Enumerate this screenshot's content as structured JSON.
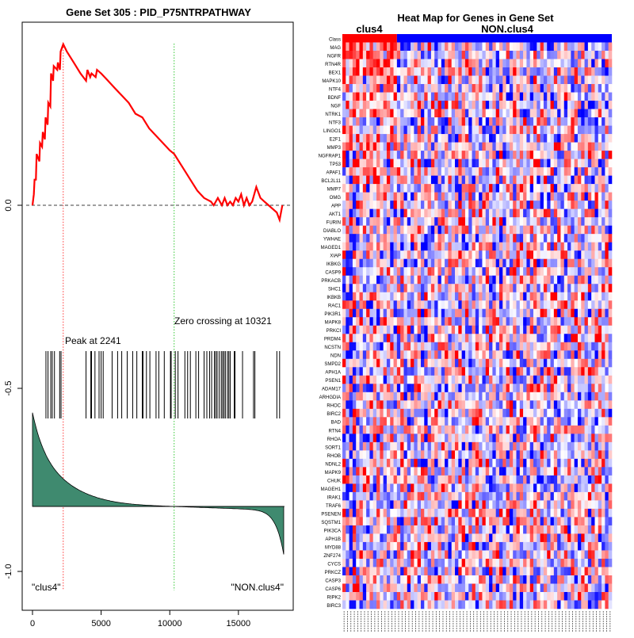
{
  "left_panel": {
    "title": "Gene Set  305 : PID_P75NTRPATHWAY",
    "peak_label": "Peak at 2241",
    "zero_label": "Zero crossing at 10321",
    "class_left_label": "\"clus4\"",
    "class_right_label": "\"NON.clus4\""
  },
  "right_panel": {
    "title": "Heat Map for Genes in Gene Set",
    "group1_label": "clus4",
    "group2_label": "NON.clus4",
    "class_row_label": "Class",
    "colors": {
      "group1": "#ff0000",
      "group2": "#0000ff",
      "high": "#ff0000",
      "low": "#0000ff"
    },
    "genes": [
      "MAG",
      "NGFR",
      "RTN4R",
      "BEX1",
      "MAPK10",
      "NTF4",
      "BDNF",
      "NGF",
      "NTRK1",
      "NTF3",
      "LINGO1",
      "E2F1",
      "MMP3",
      "NGFRAP1",
      "TP53",
      "APAF1",
      "BCL2L11",
      "MMP7",
      "OMG",
      "APP",
      "AKT1",
      "FURIN",
      "DIABLO",
      "YWHAE",
      "MAGED1",
      "XIAP",
      "IKBKG",
      "CASP9",
      "PRKACB",
      "SHC1",
      "IKBKB",
      "RAC1",
      "PIK3R1",
      "MAPK8",
      "PRKCI",
      "PRDM4",
      "NCSTN",
      "NDN",
      "SMPD2",
      "APH1A",
      "PSEN1",
      "ADAM17",
      "ARHGDIA",
      "RHOC",
      "BIRC2",
      "BAD",
      "RTN4",
      "RHOA",
      "SORT1",
      "RHOB",
      "NDNL2",
      "MAPK9",
      "CHUK",
      "MAGEH1",
      "IRAK1",
      "TRAF6",
      "PSENEN",
      "SQSTM1",
      "PIK3CA",
      "APH1B",
      "MYD88",
      "ZNF274",
      "CYCS",
      "PRKCZ",
      "CASP3",
      "CASP6",
      "RIPK2",
      "BIRC3"
    ]
  },
  "chart_data": [
    {
      "type": "line",
      "title": "Gene Set  305 : PID_P75NTRPATHWAY",
      "xlim": [
        0,
        18400
      ],
      "ylim": [
        -1.05,
        0.52
      ],
      "x_ticks": [
        0,
        5000,
        10000,
        15000
      ],
      "y_ticks": [
        0.0,
        -0.5,
        -1.0
      ],
      "enrichment_score": {
        "x": [
          0,
          100,
          150,
          250,
          300,
          500,
          550,
          700,
          750,
          900,
          950,
          1100,
          1150,
          1300,
          1350,
          1500,
          1550,
          1800,
          1850,
          2000,
          2050,
          2241,
          2500,
          3000,
          3500,
          3900,
          4000,
          4200,
          4300,
          4600,
          4700,
          5000,
          5500,
          6000,
          6500,
          7000,
          7500,
          8000,
          8500,
          9000,
          9500,
          10000,
          10321,
          11000,
          11500,
          12000,
          12500,
          13000,
          13200,
          13500,
          13800,
          14000,
          14200,
          14400,
          14600,
          14800,
          15000,
          15200,
          15400,
          15600,
          15800,
          16000,
          16300,
          16600,
          16900,
          17200,
          17500,
          17800,
          18000,
          18200
        ],
        "y": [
          0.0,
          0.03,
          0.07,
          0.07,
          0.14,
          0.12,
          0.17,
          0.16,
          0.2,
          0.18,
          0.24,
          0.22,
          0.28,
          0.27,
          0.36,
          0.34,
          0.38,
          0.37,
          0.39,
          0.37,
          0.42,
          0.44,
          0.42,
          0.39,
          0.36,
          0.34,
          0.37,
          0.35,
          0.36,
          0.35,
          0.37,
          0.36,
          0.34,
          0.32,
          0.3,
          0.28,
          0.25,
          0.24,
          0.21,
          0.19,
          0.17,
          0.15,
          0.14,
          0.1,
          0.07,
          0.04,
          0.02,
          0.01,
          0.0,
          0.02,
          0.0,
          0.02,
          0.0,
          0.01,
          0.0,
          0.02,
          0.01,
          0.03,
          0.0,
          0.02,
          0.0,
          0.01,
          0.05,
          0.02,
          0.01,
          0.0,
          -0.01,
          -0.02,
          -0.04,
          0.0
        ]
      },
      "peak_x": 2241,
      "zero_crossing_x": 10321,
      "hit_positions": [
        980,
        1130,
        1330,
        1440,
        1600,
        1980,
        2080,
        3900,
        4250,
        4300,
        4550,
        4850,
        5000,
        5150,
        5800,
        6200,
        6500,
        6900,
        7300,
        7600,
        8000,
        8050,
        8300,
        8550,
        9000,
        9200,
        9600,
        10050,
        10100,
        10400,
        10600,
        11100,
        11300,
        11500,
        11900,
        12100,
        12500,
        12700,
        12900,
        13050,
        13250,
        13350,
        13450,
        13600,
        13750,
        13850,
        13950,
        14050,
        14200,
        14300,
        14400,
        14700,
        14750,
        15300,
        16100,
        16200,
        17800,
        18000
      ],
      "metric_range": [
        0.38,
        -0.24
      ]
    },
    {
      "type": "heatmap",
      "title": "Heat Map for Genes in Gene Set",
      "groups": [
        {
          "name": "clus4",
          "n_samples": 16
        },
        {
          "name": "NON.clus4",
          "n_samples": 63
        }
      ],
      "n_genes": 68,
      "color_scale": "blue (low) - white - red (high)"
    }
  ]
}
